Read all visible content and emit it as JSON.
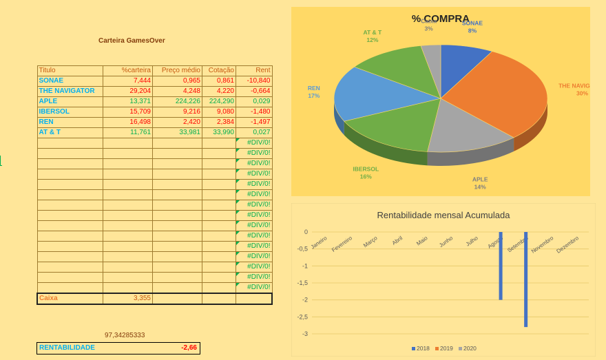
{
  "sheet": {
    "title": "Carteira GamesOver"
  },
  "table": {
    "headers": [
      "Titulo",
      "%carteira",
      "Preço médio",
      "Cotação",
      "Rent"
    ],
    "rows": [
      {
        "titulo": "SONAE",
        "carteira": "7,444",
        "preco": "0,965",
        "cotacao": "0,861",
        "rent": "-10,840",
        "tone": "red"
      },
      {
        "titulo": "THE NAVIGATOR",
        "carteira": "29,204",
        "preco": "4,248",
        "cotacao": "4,220",
        "rent": "-0,664",
        "tone": "red"
      },
      {
        "titulo": "APLE",
        "carteira": "13,371",
        "preco": "224,226",
        "cotacao": "224,290",
        "rent": "0,029",
        "tone": "green"
      },
      {
        "titulo": "IBERSOL",
        "carteira": "15,709",
        "preco": "9,216",
        "cotacao": "9,080",
        "rent": "-1,480",
        "tone": "red"
      },
      {
        "titulo": "REN",
        "carteira": "16,498",
        "preco": "2,420",
        "cotacao": "2,384",
        "rent": "-1,497",
        "tone": "red"
      },
      {
        "titulo": "AT & T",
        "carteira": "11,761",
        "preco": "33,981",
        "cotacao": "33,990",
        "rent": "0,027",
        "tone": "green"
      }
    ],
    "error_text": "#DIV/0!",
    "empty_rows": 15,
    "caixa": {
      "label": "Caixa",
      "value": "3,355"
    },
    "total": "97,34285333",
    "rentabilidade": {
      "label": "RENTABILIDADE",
      "value": "-2,66"
    }
  },
  "chart_data": [
    {
      "type": "pie",
      "title": "% COMPRA",
      "slices": [
        {
          "label": "SONAE",
          "pct": "8%",
          "value": 8,
          "color": "#4472C4"
        },
        {
          "label": "THE NAVIGATOR",
          "pct": "30%",
          "value": 30,
          "color": "#ED7D31"
        },
        {
          "label": "APLE",
          "pct": "14%",
          "value": 14,
          "color": "#A5A5A5"
        },
        {
          "label": "IBERSOL",
          "pct": "16%",
          "value": 16,
          "color": "#70AD47"
        },
        {
          "label": "REN",
          "pct": "17%",
          "value": 17,
          "color": "#5B9BD5"
        },
        {
          "label": "AT & T",
          "pct": "12%",
          "value": 12,
          "color": "#70AD47"
        },
        {
          "label": "Caixa",
          "pct": "3%",
          "value": 3,
          "color": "#A5A5A5"
        }
      ]
    },
    {
      "type": "bar",
      "title": "Rentabilidade mensal Acumulada",
      "categories": [
        "Janeiro",
        "Fevereiro",
        "Março",
        "Abril",
        "Maio",
        "Junho",
        "Julho",
        "Agosto",
        "Setembro",
        "Novembro",
        "Dezembro"
      ],
      "series": [
        {
          "name": "2018",
          "color": "#4472C4",
          "values": [
            null,
            null,
            null,
            null,
            null,
            null,
            null,
            -2.0,
            -2.8,
            null,
            null
          ]
        },
        {
          "name": "2019",
          "color": "#ED7D31",
          "values": [
            null,
            null,
            null,
            null,
            null,
            null,
            null,
            null,
            null,
            null,
            null
          ]
        },
        {
          "name": "2020",
          "color": "#A5A5A5",
          "values": [
            null,
            null,
            null,
            null,
            null,
            null,
            null,
            null,
            null,
            null,
            null
          ]
        }
      ],
      "ylim": [
        -3,
        0
      ],
      "yticks": [
        "0",
        "-0,5",
        "-1",
        "-1,5",
        "-2",
        "-2,5",
        "-3"
      ],
      "ytick_values": [
        0,
        -0.5,
        -1,
        -1.5,
        -2,
        -2.5,
        -3
      ],
      "legend": "bottom"
    }
  ]
}
